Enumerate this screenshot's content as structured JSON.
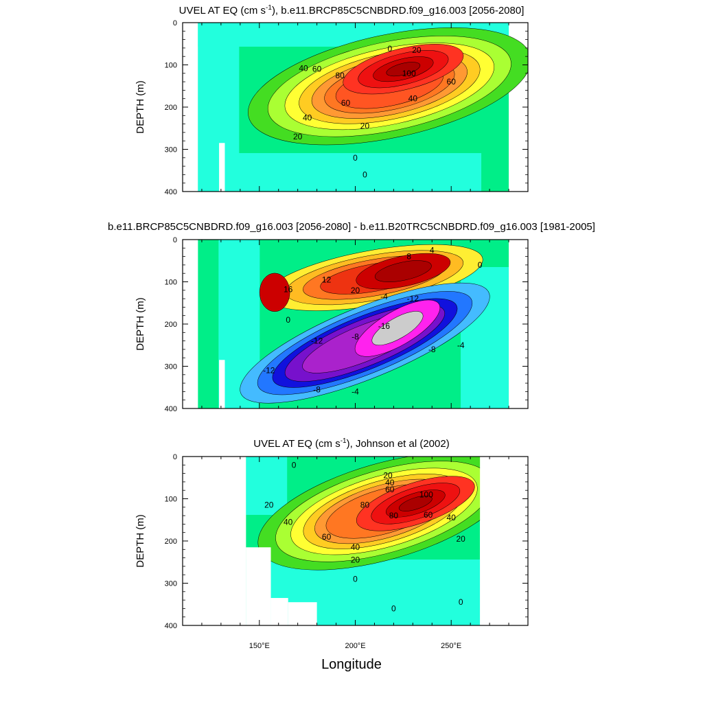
{
  "figure": {
    "xlabel": "Longitude",
    "x_ticks": [
      {
        "value": 150,
        "label": "150°E"
      },
      {
        "value": 200,
        "label": "200°E"
      },
      {
        "value": 250,
        "label": "250°E"
      }
    ]
  },
  "chart_data": [
    {
      "type": "heatmap",
      "title": "UVEL AT EQ (cm s-1), b.e11.BRCP85C5CNBDRD.f09_g16.003 [2056-2080]",
      "title_parts": {
        "pre": "UVEL AT EQ (cm s",
        "sup": "-1",
        "post": "), b.e11.BRCP85C5CNBDRD.f09_g16.003 [2056-2080]"
      },
      "ylabel": "DEPTH (m)",
      "xlim": [
        110,
        290
      ],
      "ylim": [
        400,
        0
      ],
      "y_ticks": [
        0,
        100,
        200,
        300,
        400
      ],
      "data_lon_range": [
        118,
        280
      ],
      "core": {
        "lon": 225,
        "depth": 110,
        "max": 110
      },
      "contour_labels": [
        {
          "lon": 218,
          "depth": 62,
          "text": "0"
        },
        {
          "lon": 232,
          "depth": 65,
          "text": "20"
        },
        {
          "lon": 173,
          "depth": 108,
          "text": "40"
        },
        {
          "lon": 180,
          "depth": 110,
          "text": "60"
        },
        {
          "lon": 192,
          "depth": 125,
          "text": "80"
        },
        {
          "lon": 228,
          "depth": 120,
          "text": "100"
        },
        {
          "lon": 250,
          "depth": 140,
          "text": "60"
        },
        {
          "lon": 195,
          "depth": 190,
          "text": "60"
        },
        {
          "lon": 230,
          "depth": 180,
          "text": "40"
        },
        {
          "lon": 175,
          "depth": 225,
          "text": "40"
        },
        {
          "lon": 205,
          "depth": 245,
          "text": "20"
        },
        {
          "lon": 170,
          "depth": 270,
          "text": "20"
        },
        {
          "lon": 200,
          "depth": 320,
          "text": "0"
        },
        {
          "lon": 205,
          "depth": 360,
          "text": "0"
        }
      ]
    },
    {
      "type": "heatmap",
      "title": "b.e11.BRCP85C5CNBDRD.f09_g16.003 [2056-2080] - b.e11.B20TRC5CNBDRD.f09_g16.003 [1981-2005]",
      "title_parts": {
        "pre": "b.e11.BRCP85C5CNBDRD.f09_g16.003 [2056-2080] - b.e11.B20TRC5CNBDRD.f09_g16.003 [1981-2005]",
        "sup": "",
        "post": ""
      },
      "ylabel": "DEPTH (m)",
      "xlim": [
        110,
        290
      ],
      "ylim": [
        400,
        0
      ],
      "y_ticks": [
        0,
        100,
        200,
        300,
        400
      ],
      "data_lon_range": [
        118,
        280
      ],
      "positive_core": {
        "lon": 225,
        "depth": 75,
        "max": 24
      },
      "negative_core": {
        "lon": 222,
        "depth": 210,
        "min": -20
      },
      "contour_labels": [
        {
          "lon": 240,
          "depth": 25,
          "text": "4"
        },
        {
          "lon": 228,
          "depth": 40,
          "text": "8"
        },
        {
          "lon": 185,
          "depth": 95,
          "text": "12"
        },
        {
          "lon": 165,
          "depth": 118,
          "text": "16"
        },
        {
          "lon": 200,
          "depth": 120,
          "text": "20"
        },
        {
          "lon": 215,
          "depth": 135,
          "text": "-4"
        },
        {
          "lon": 230,
          "depth": 140,
          "text": "-12"
        },
        {
          "lon": 215,
          "depth": 205,
          "text": "-16"
        },
        {
          "lon": 180,
          "depth": 240,
          "text": "-12"
        },
        {
          "lon": 200,
          "depth": 230,
          "text": "-8"
        },
        {
          "lon": 240,
          "depth": 260,
          "text": "-8"
        },
        {
          "lon": 255,
          "depth": 250,
          "text": "-4"
        },
        {
          "lon": 165,
          "depth": 190,
          "text": "0"
        },
        {
          "lon": 155,
          "depth": 310,
          "text": "-12"
        },
        {
          "lon": 200,
          "depth": 360,
          "text": "-4"
        },
        {
          "lon": 180,
          "depth": 355,
          "text": "-8"
        },
        {
          "lon": 265,
          "depth": 60,
          "text": "0"
        }
      ]
    },
    {
      "type": "heatmap",
      "title": "UVEL AT EQ (cm s-1), Johnson et al (2002)",
      "title_parts": {
        "pre": "UVEL AT EQ (cm s",
        "sup": "-1",
        "post": "), Johnson et al (2002)"
      },
      "ylabel": "DEPTH (m)",
      "xlim": [
        110,
        290
      ],
      "ylim": [
        400,
        0
      ],
      "y_ticks": [
        0,
        100,
        200,
        300,
        400
      ],
      "data_lon_range": [
        143,
        265
      ],
      "core": {
        "lon": 235,
        "depth": 95,
        "max": 105
      },
      "contour_labels": [
        {
          "lon": 168,
          "depth": 20,
          "text": "0"
        },
        {
          "lon": 217,
          "depth": 45,
          "text": "20"
        },
        {
          "lon": 218,
          "depth": 62,
          "text": "40"
        },
        {
          "lon": 218,
          "depth": 78,
          "text": "60"
        },
        {
          "lon": 237,
          "depth": 90,
          "text": "100"
        },
        {
          "lon": 205,
          "depth": 115,
          "text": "80"
        },
        {
          "lon": 220,
          "depth": 140,
          "text": "80"
        },
        {
          "lon": 238,
          "depth": 138,
          "text": "60"
        },
        {
          "lon": 250,
          "depth": 145,
          "text": "40"
        },
        {
          "lon": 155,
          "depth": 115,
          "text": "20"
        },
        {
          "lon": 165,
          "depth": 155,
          "text": "40"
        },
        {
          "lon": 185,
          "depth": 190,
          "text": "60"
        },
        {
          "lon": 200,
          "depth": 215,
          "text": "40"
        },
        {
          "lon": 255,
          "depth": 195,
          "text": "20"
        },
        {
          "lon": 200,
          "depth": 245,
          "text": "20"
        },
        {
          "lon": 200,
          "depth": 290,
          "text": "0"
        },
        {
          "lon": 220,
          "depth": 360,
          "text": "0"
        },
        {
          "lon": 255,
          "depth": 345,
          "text": "0"
        }
      ]
    }
  ]
}
